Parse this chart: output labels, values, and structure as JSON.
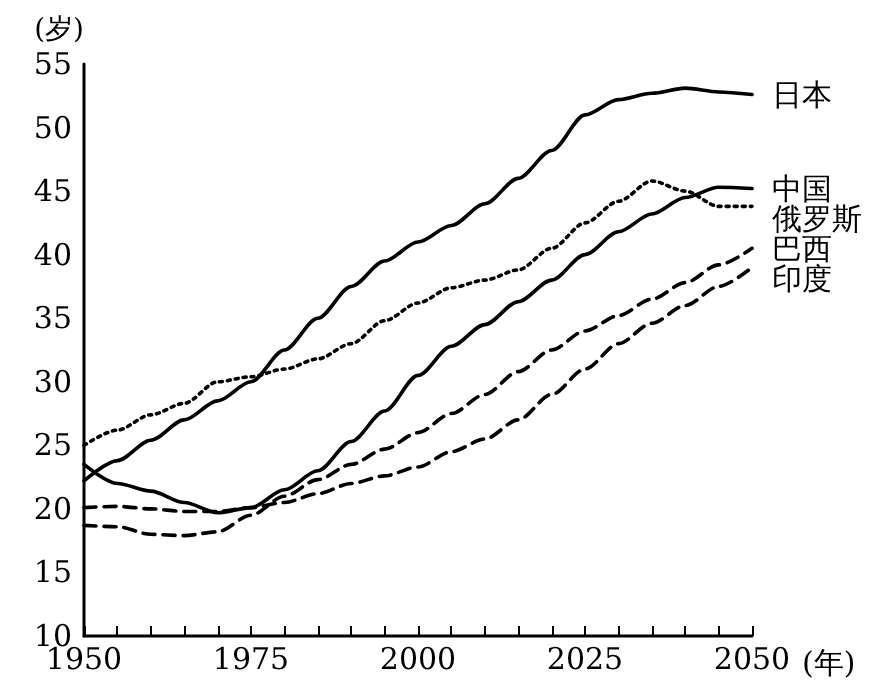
{
  "chart_data": {
    "type": "line",
    "xlabel": "(年)",
    "ylabel": "(岁)",
    "x": [
      1950,
      1955,
      1960,
      1965,
      1970,
      1975,
      1980,
      1985,
      1990,
      1995,
      2000,
      2005,
      2010,
      2015,
      2020,
      2025,
      2030,
      2035,
      2040,
      2045,
      2050
    ],
    "series": [
      {
        "name": "日本",
        "color": "#000000",
        "line_style": "solid",
        "values": [
          22.2,
          23.8,
          25.4,
          27,
          28.5,
          30,
          32.5,
          35,
          37.5,
          39.5,
          41,
          42.3,
          44,
          46,
          48.2,
          51,
          52.2,
          52.7,
          53.1,
          52.8,
          52.6
        ]
      },
      {
        "name": "中国",
        "color": "#000000",
        "line_style": "solid",
        "values": [
          23.5,
          22,
          21.4,
          20.5,
          19.7,
          20.1,
          21.5,
          23,
          25.3,
          27.7,
          30.5,
          32.8,
          34.5,
          36.3,
          38,
          40,
          41.8,
          43.2,
          44.5,
          45.3,
          45.2
        ]
      },
      {
        "name": "俄罗斯",
        "color": "#000000",
        "line_style": "dotted",
        "values": [
          25,
          26.2,
          27.4,
          28.3,
          30,
          30.4,
          31,
          31.8,
          33,
          34.8,
          36.2,
          37.4,
          38,
          38.8,
          40.5,
          42.5,
          44.2,
          45.8,
          45,
          43.8,
          43.8
        ]
      },
      {
        "name": "巴西",
        "color": "#000000",
        "line_style": "dashed",
        "values": [
          18.7,
          18.6,
          18,
          17.9,
          18.2,
          19.5,
          21,
          22.3,
          23.5,
          24.7,
          26,
          27.5,
          29,
          30.8,
          32.5,
          34,
          35.2,
          36.5,
          37.8,
          39.2,
          40.5
        ]
      },
      {
        "name": "印度",
        "color": "#000000",
        "line_style": "dashed",
        "values": [
          20.1,
          20.2,
          20,
          19.8,
          19.8,
          20.1,
          20.5,
          21.2,
          22,
          22.6,
          23.3,
          24.5,
          25.5,
          27,
          29,
          31,
          33,
          34.6,
          36,
          37.5,
          39
        ]
      }
    ],
    "xlim": [
      1950,
      2050
    ],
    "xticks": [
      1950,
      {
        "value": 1955,
        "label": null
      },
      {
        "value": 1960,
        "label": null
      },
      {
        "value": 1965,
        "label": null
      },
      {
        "value": 1970,
        "label": null
      },
      1975,
      {
        "value": 1980,
        "label": null
      },
      {
        "value": 1985,
        "label": null
      },
      {
        "value": 1990,
        "label": null
      },
      {
        "value": 1995,
        "label": null
      },
      2000,
      {
        "value": 2005,
        "label": null
      },
      {
        "value": 2010,
        "label": null
      },
      {
        "value": 2015,
        "label": null
      },
      {
        "value": 2020,
        "label": null
      },
      2025,
      {
        "value": 2030,
        "label": null
      },
      {
        "value": 2035,
        "label": null
      },
      {
        "value": 2040,
        "label": null
      },
      {
        "value": 2045,
        "label": null
      },
      2050
    ],
    "ylim": [
      10,
      55
    ],
    "yticks": [
      10,
      15,
      20,
      25,
      30,
      35,
      40,
      45,
      50,
      55
    ],
    "grid": false,
    "legend": false,
    "marker": "none"
  }
}
